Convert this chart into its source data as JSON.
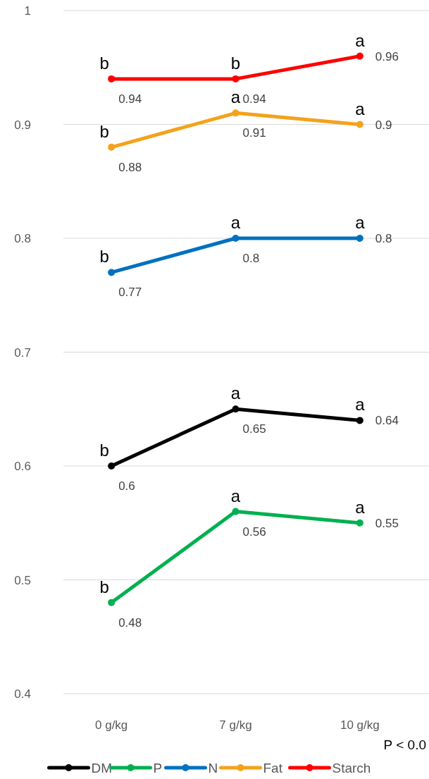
{
  "chart_data": {
    "type": "line",
    "categories": [
      "0 g/kg",
      "7 g/kg",
      "10 g/kg"
    ],
    "series": [
      {
        "name": "DM",
        "color": "#000000",
        "values": [
          0.6,
          0.65,
          0.64
        ]
      },
      {
        "name": "P",
        "color": "#00b050",
        "values": [
          0.48,
          0.56,
          0.55
        ]
      },
      {
        "name": "N",
        "color": "#0070c0",
        "values": [
          0.77,
          0.8,
          0.8
        ]
      },
      {
        "name": "Fat",
        "color": "#f4a21c",
        "values": [
          0.88,
          0.91,
          0.9
        ]
      },
      {
        "name": "Starch",
        "color": "#ff0000",
        "values": [
          0.94,
          0.94,
          0.96
        ]
      }
    ],
    "ylim": [
      0.4,
      1
    ],
    "yticks": [
      {
        "value": 0.4,
        "label": "0.4"
      },
      {
        "value": 0.5,
        "label": "0.5"
      },
      {
        "value": 0.6,
        "label": "0.6"
      },
      {
        "value": 0.7,
        "label": "0.7"
      },
      {
        "value": 0.8,
        "label": "0.8"
      },
      {
        "value": 0.9,
        "label": "0.9"
      },
      {
        "value": 1,
        "label": "1"
      }
    ],
    "grid": "y",
    "legend": "bottom",
    "marker": "circle",
    "line_style": "solid",
    "data_labels": true,
    "annotations": [
      {
        "text": "b",
        "x": "0 g/kg",
        "y": 0.6
      },
      {
        "text": "a",
        "x": "7 g/kg",
        "y": 0.65
      },
      {
        "text": "a",
        "x": "10 g/kg",
        "y": 0.64
      },
      {
        "text": "b",
        "x": "0 g/kg",
        "y": 0.48
      },
      {
        "text": "a",
        "x": "7 g/kg",
        "y": 0.56
      },
      {
        "text": "a",
        "x": "10 g/kg",
        "y": 0.55
      },
      {
        "text": "b",
        "x": "0 g/kg",
        "y": 0.77
      },
      {
        "text": "a",
        "x": "7 g/kg",
        "y": 0.8
      },
      {
        "text": "a",
        "x": "10 g/kg",
        "y": 0.8
      },
      {
        "text": "b",
        "x": "0 g/kg",
        "y": 0.88
      },
      {
        "text": "a",
        "x": "7 g/kg",
        "y": 0.91
      },
      {
        "text": "a",
        "x": "10 g/kg",
        "y": 0.9
      },
      {
        "text": "b",
        "x": "0 g/kg",
        "y": 0.94
      },
      {
        "text": "b",
        "x": "7 g/kg",
        "y": 0.94
      },
      {
        "text": "a",
        "x": "10 g/kg",
        "y": 0.96
      },
      "P < 0.0"
    ]
  }
}
